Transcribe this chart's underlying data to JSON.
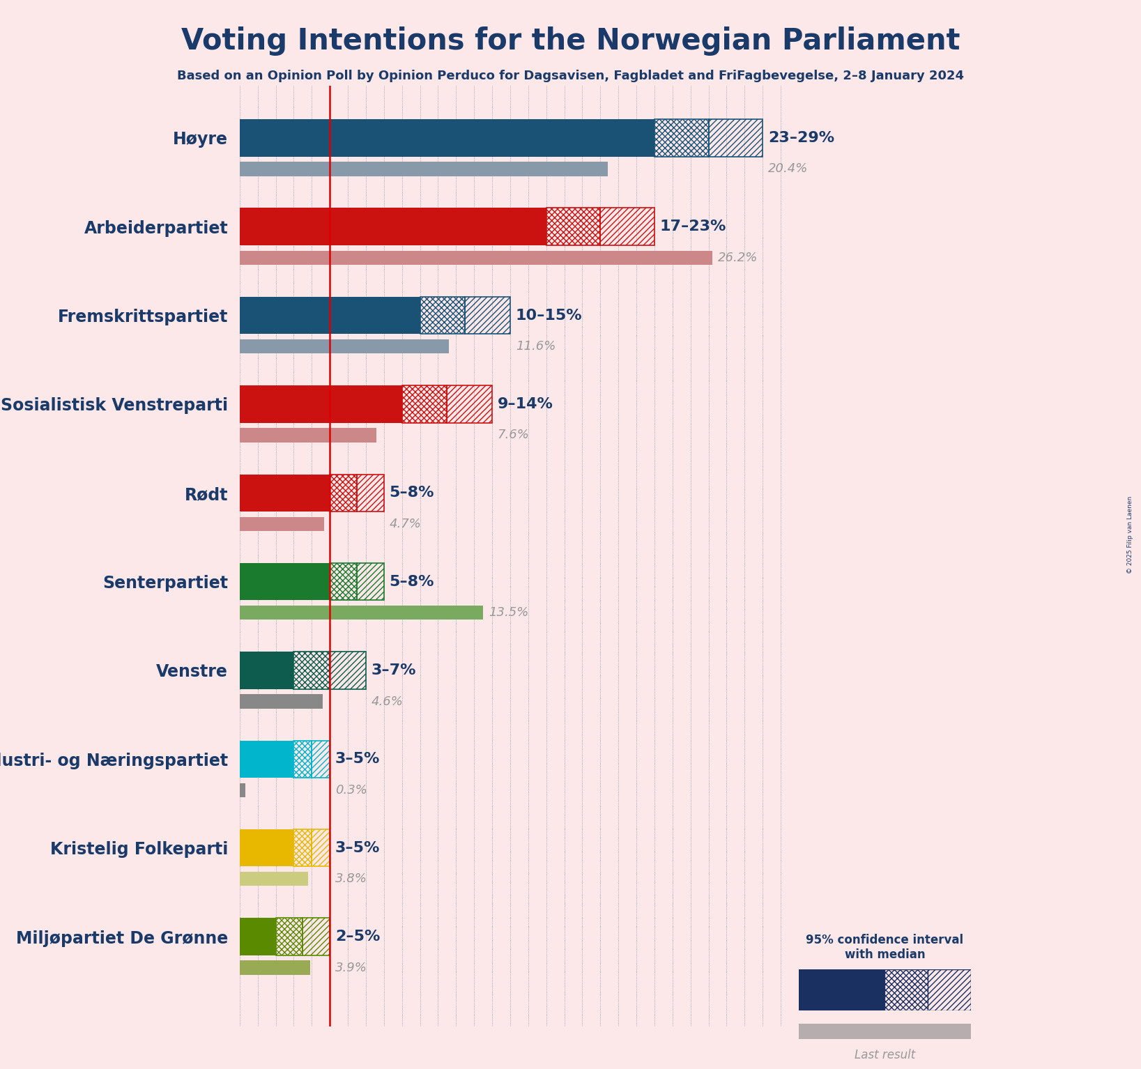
{
  "title": "Voting Intentions for the Norwegian Parliament",
  "subtitle": "Based on an Opinion Poll by Opinion Perduco for Dagsavisen, Fagbladet and FriFagbevegelse, 2–8 January 2024",
  "copyright": "© 2025 Filip van Laenen",
  "background_color": "#fce8e8",
  "parties": [
    {
      "name": "Høyre",
      "color": "#1a5276",
      "last_color": "#8899aa",
      "last_result": 20.4,
      "ci_low": 23,
      "median": 26,
      "ci_high": 29,
      "label": "23–29%",
      "last_label": "20.4%"
    },
    {
      "name": "Arbeiderpartiet",
      "color": "#cc1111",
      "last_color": "#cc8888",
      "last_result": 26.2,
      "ci_low": 17,
      "median": 20,
      "ci_high": 23,
      "label": "17–23%",
      "last_label": "26.2%"
    },
    {
      "name": "Fremskrittspartiet",
      "color": "#1a5276",
      "last_color": "#8899aa",
      "last_result": 11.6,
      "ci_low": 10,
      "median": 12.5,
      "ci_high": 15,
      "label": "10–15%",
      "last_label": "11.6%"
    },
    {
      "name": "Sosialistisk Venstreparti",
      "color": "#cc1111",
      "last_color": "#cc8888",
      "last_result": 7.6,
      "ci_low": 9,
      "median": 11.5,
      "ci_high": 14,
      "label": "9–14%",
      "last_label": "7.6%"
    },
    {
      "name": "Rødt",
      "color": "#cc1111",
      "last_color": "#cc8888",
      "last_result": 4.7,
      "ci_low": 5,
      "median": 6.5,
      "ci_high": 8,
      "label": "5–8%",
      "last_label": "4.7%"
    },
    {
      "name": "Senterpartiet",
      "color": "#1a7a2e",
      "last_color": "#7aaa60",
      "last_result": 13.5,
      "ci_low": 5,
      "median": 6.5,
      "ci_high": 8,
      "label": "5–8%",
      "last_label": "13.5%"
    },
    {
      "name": "Venstre",
      "color": "#0d5c4d",
      "last_color": "#888888",
      "last_result": 4.6,
      "ci_low": 3,
      "median": 5,
      "ci_high": 7,
      "label": "3–7%",
      "last_label": "4.6%"
    },
    {
      "name": "Industri- og Næringspartiet",
      "color": "#00b5cc",
      "last_color": "#888888",
      "last_result": 0.3,
      "ci_low": 3,
      "median": 4,
      "ci_high": 5,
      "label": "3–5%",
      "last_label": "0.3%"
    },
    {
      "name": "Kristelig Folkeparti",
      "color": "#e8b800",
      "last_color": "#cccc80",
      "last_result": 3.8,
      "ci_low": 3,
      "median": 4,
      "ci_high": 5,
      "label": "3–5%",
      "last_label": "3.8%"
    },
    {
      "name": "Miljøpartiet De Grønne",
      "color": "#5a8a00",
      "last_color": "#99aa55",
      "last_result": 3.9,
      "ci_low": 2,
      "median": 3.5,
      "ci_high": 5,
      "label": "2–5%",
      "last_label": "3.9%"
    }
  ],
  "xlim": [
    0,
    31
  ],
  "red_line_x": 5,
  "label_fontsize": 15,
  "name_fontsize": 17,
  "title_fontsize": 30,
  "subtitle_fontsize": 13,
  "tick_color": "#1a3a6a",
  "label_color": "#1a3a6a",
  "last_text_color": "#999999",
  "legend_color": "#1a3060"
}
